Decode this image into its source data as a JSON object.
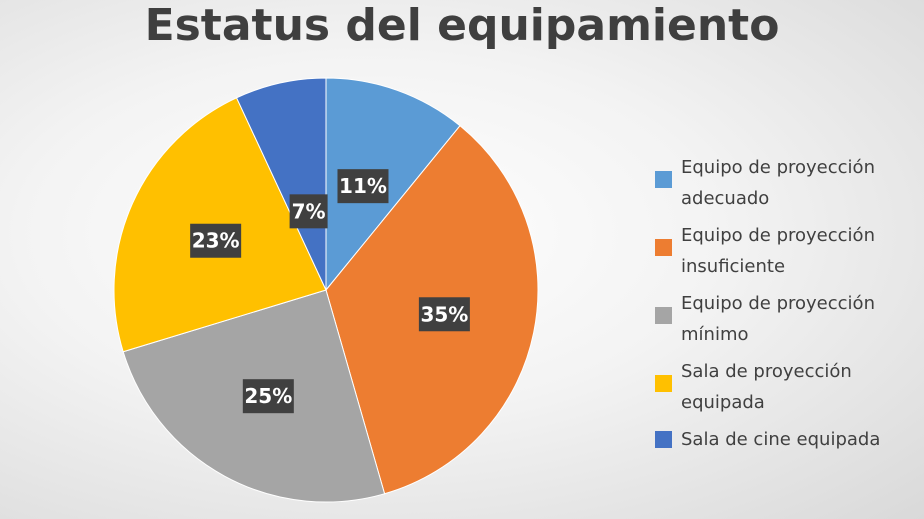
{
  "chart_data": {
    "type": "pie",
    "title": "Estatus del equipamiento",
    "categories": [
      "Equipo de proyección adecuado",
      "Equipo de proyección insuficiente",
      "Equipo de proyección mínimo",
      "Sala de proyección equipada",
      "Sala de cine equipada"
    ],
    "values": [
      11,
      35,
      25,
      23,
      7
    ],
    "labels": [
      "11%",
      "35%",
      "25%",
      "23%",
      "7%"
    ],
    "colors": [
      "#5b9bd5",
      "#ed7d31",
      "#a5a5a5",
      "#ffc000",
      "#4472c4"
    ],
    "legend_position": "right",
    "legend": [
      {
        "line1": "Equipo de proyección",
        "line2": "adecuado"
      },
      {
        "line1": "Equipo de proyección",
        "line2": "insuficiente"
      },
      {
        "line1": "Equipo de proyección",
        "line2": "mínimo"
      },
      {
        "line1": "Sala de proyección",
        "line2": "equipada"
      },
      {
        "line1": "Sala de cine equipada",
        "line2": ""
      }
    ]
  }
}
